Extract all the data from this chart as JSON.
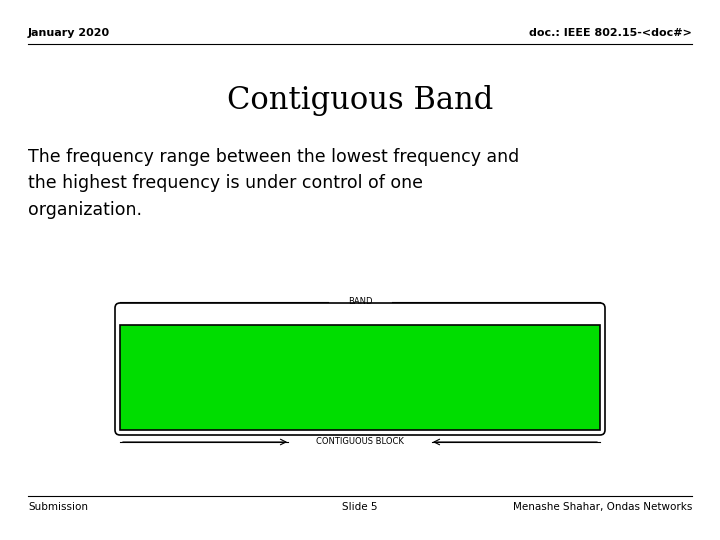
{
  "background_color": "#ffffff",
  "header_left": "January 2020",
  "header_right": "doc.: IEEE 802.15-<doc#>",
  "title": "Contiguous Band",
  "body_text": "The frequency range between the lowest frequency and\nthe highest frequency is under control of one\norganization.",
  "band_label": "BAND",
  "block_label": "CONTIGUOUS BLOCK",
  "green_color": "#00dd00",
  "footer_left": "Submission",
  "footer_center": "Slide 5",
  "footer_right": "Menashe Shahar, Ondas Networks",
  "header_fontsize": 8,
  "title_fontsize": 22,
  "body_fontsize": 12.5,
  "footer_fontsize": 7.5,
  "band_label_fontsize": 6,
  "block_label_fontsize": 6
}
